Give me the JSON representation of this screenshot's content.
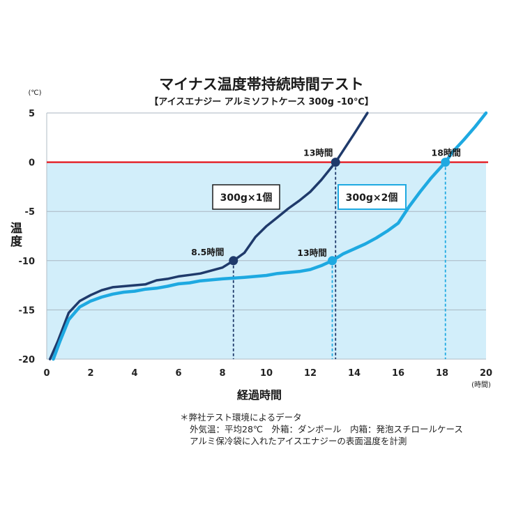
{
  "chart_data": {
    "type": "line",
    "title": "マイナス温度帯持続時間テスト",
    "subtitle": "【アイスエナジー アルミソフトケース 300g -10℃】",
    "xlabel": "経過時間",
    "xunit": "(時間)",
    "ylabel": "温度",
    "yunit": "(℃)",
    "xlim": [
      0,
      20
    ],
    "ylim": [
      -20,
      5
    ],
    "xticks": [
      0,
      2,
      4,
      6,
      8,
      10,
      12,
      14,
      16,
      18,
      20
    ],
    "yticks": [
      5,
      0,
      -5,
      -10,
      -15,
      -20
    ],
    "grid": true,
    "legend": "inside-center",
    "reference_line": {
      "y": 0,
      "color": "#e3262d"
    },
    "shaded_region": {
      "y_from": -20,
      "y_to": 0,
      "color": "#d2eefa"
    },
    "series": [
      {
        "name": "300g×1個",
        "color": "#1f3a6b",
        "points": [
          [
            0.15,
            -20
          ],
          [
            0.5,
            -18.2
          ],
          [
            1.0,
            -15.3
          ],
          [
            1.5,
            -14.1
          ],
          [
            2.0,
            -13.5
          ],
          [
            2.5,
            -13.0
          ],
          [
            3.0,
            -12.7
          ],
          [
            3.5,
            -12.6
          ],
          [
            4.0,
            -12.5
          ],
          [
            4.5,
            -12.4
          ],
          [
            5.0,
            -12.0
          ],
          [
            5.5,
            -11.85
          ],
          [
            6.0,
            -11.6
          ],
          [
            6.5,
            -11.45
          ],
          [
            7.0,
            -11.3
          ],
          [
            7.5,
            -11.0
          ],
          [
            8.0,
            -10.7
          ],
          [
            8.5,
            -10.0
          ],
          [
            9.0,
            -9.2
          ],
          [
            9.5,
            -7.6
          ],
          [
            10.0,
            -6.5
          ],
          [
            10.5,
            -5.6
          ],
          [
            11.0,
            -4.7
          ],
          [
            11.5,
            -3.9
          ],
          [
            12.0,
            -3.0
          ],
          [
            12.5,
            -1.8
          ],
          [
            13.15,
            0
          ],
          [
            13.5,
            1.2
          ],
          [
            14.0,
            2.9
          ],
          [
            14.6,
            5.0
          ]
        ],
        "markers": [
          {
            "x": 8.5,
            "y": -10,
            "label": "8.5時間"
          },
          {
            "x": 13.15,
            "y": 0,
            "label": "13時間"
          }
        ]
      },
      {
        "name": "300g×2個",
        "color": "#1ea9e1",
        "points": [
          [
            0.3,
            -20
          ],
          [
            0.6,
            -18.2
          ],
          [
            1.0,
            -16.0
          ],
          [
            1.5,
            -14.7
          ],
          [
            2.0,
            -14.1
          ],
          [
            2.5,
            -13.7
          ],
          [
            3.0,
            -13.4
          ],
          [
            3.5,
            -13.2
          ],
          [
            4.0,
            -13.1
          ],
          [
            4.5,
            -12.9
          ],
          [
            5.0,
            -12.8
          ],
          [
            5.5,
            -12.6
          ],
          [
            6.0,
            -12.35
          ],
          [
            6.5,
            -12.25
          ],
          [
            7.0,
            -12.05
          ],
          [
            8.0,
            -11.85
          ],
          [
            9.0,
            -11.7
          ],
          [
            10.0,
            -11.5
          ],
          [
            10.5,
            -11.3
          ],
          [
            11.0,
            -11.2
          ],
          [
            11.5,
            -11.1
          ],
          [
            12.0,
            -10.9
          ],
          [
            12.5,
            -10.5
          ],
          [
            13.0,
            -10.0
          ],
          [
            13.5,
            -9.3
          ],
          [
            14.0,
            -8.8
          ],
          [
            14.5,
            -8.3
          ],
          [
            15.0,
            -7.7
          ],
          [
            15.5,
            -7.0
          ],
          [
            16.0,
            -6.2
          ],
          [
            16.5,
            -4.5
          ],
          [
            17.0,
            -3.0
          ],
          [
            17.5,
            -1.6
          ],
          [
            18.15,
            0
          ],
          [
            18.5,
            1.1
          ],
          [
            19.0,
            2.3
          ],
          [
            19.5,
            3.6
          ],
          [
            20.0,
            5.0
          ]
        ],
        "markers": [
          {
            "x": 13.0,
            "y": -10,
            "label": "13時間"
          },
          {
            "x": 18.15,
            "y": 0,
            "label": "18時間"
          }
        ]
      }
    ]
  },
  "footnote": {
    "lines": [
      "＊弊社テスト環境によるデータ",
      "外気温：平均28℃　外箱：ダンボール　内箱：発泡スチロールケース",
      "アルミ保冷袋に入れたアイスエナジーの表面温度を計測"
    ]
  }
}
